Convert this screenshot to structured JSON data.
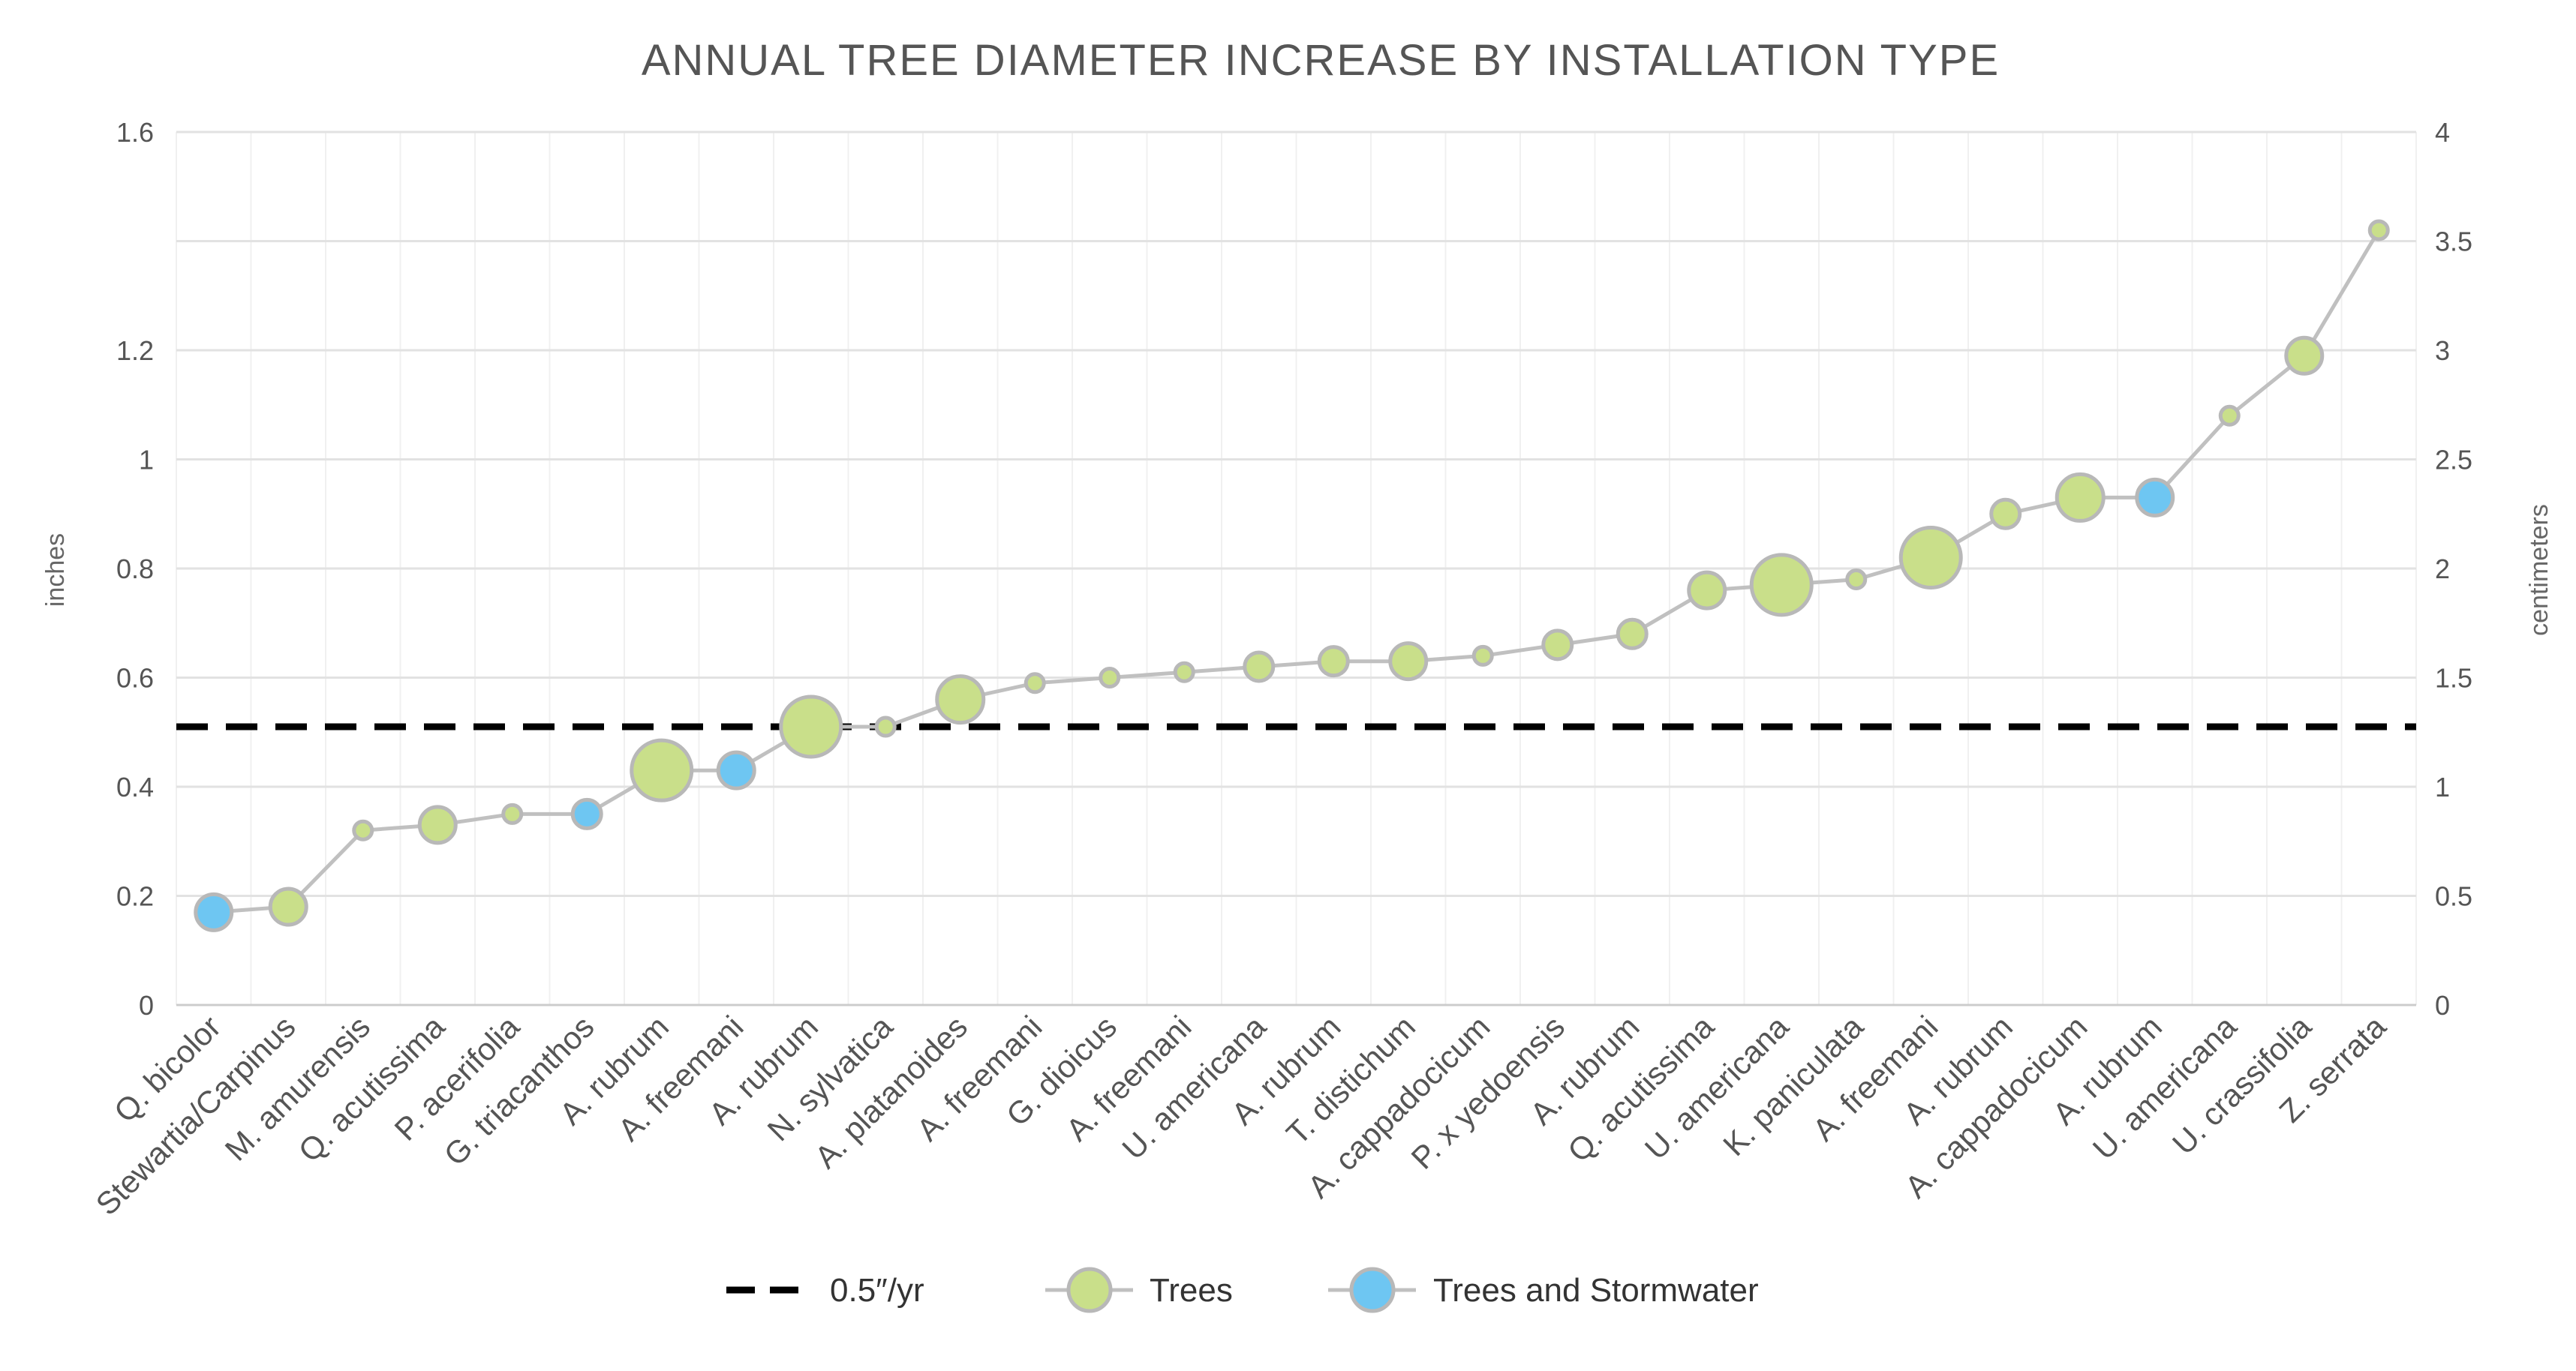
{
  "chart_data": {
    "type": "line",
    "title": "ANNUAL TREE DIAMETER INCREASE BY INSTALLATION TYPE",
    "ylabel": "inches",
    "y2label": "centimeters",
    "ylim": [
      0,
      1.6
    ],
    "y2lim": [
      0,
      4
    ],
    "yticks": [
      0,
      0.2,
      0.4,
      0.6,
      0.8,
      1,
      1.2,
      1.6
    ],
    "y2ticks": [
      0,
      0.5,
      1,
      1.5,
      2,
      2.5,
      3,
      3.5,
      4
    ],
    "grid": true,
    "legend_position": "bottom",
    "categories": [
      "Q. bicolor",
      "Stewartia/Carpinus",
      "M. amurensis",
      "Q. acutissima",
      "P. acerifolia",
      "G. triacanthos",
      "A. rubrum",
      "A. freemani",
      "A. rubrum",
      "N. sylvatica",
      "A. platanoides",
      "A. freemani",
      "G. dioicus",
      "A. freemani",
      "U. americana",
      "A. rubrum",
      "T. distichum",
      "A. cappadocicum",
      "P. x yedoensis",
      "A. rubrum",
      "Q. acutissima",
      "U. americana",
      "K. paniculata",
      "A. freemani",
      "A. rubrum",
      "A. cappadocicum",
      "A. rubrum",
      "U. americana",
      "U. crassifolia",
      "Z. serrata"
    ],
    "values": [
      0.17,
      0.18,
      0.32,
      0.33,
      0.35,
      0.35,
      0.43,
      0.43,
      0.51,
      0.51,
      0.56,
      0.59,
      0.6,
      0.61,
      0.62,
      0.63,
      0.63,
      0.64,
      0.66,
      0.68,
      0.76,
      0.77,
      0.78,
      0.82,
      0.9,
      0.93,
      0.93,
      1.08,
      1.19,
      1.42
    ],
    "group": [
      "stormwater",
      "trees",
      "trees",
      "trees",
      "trees",
      "stormwater",
      "trees",
      "stormwater",
      "trees",
      "trees",
      "trees",
      "trees",
      "trees",
      "trees",
      "trees",
      "trees",
      "trees",
      "trees",
      "trees",
      "trees",
      "trees",
      "trees",
      "trees",
      "trees",
      "trees",
      "trees",
      "stormwater",
      "trees",
      "trees",
      "trees"
    ],
    "size": [
      4,
      4,
      1,
      4,
      1,
      3,
      7,
      4,
      7,
      1,
      5,
      1,
      1,
      1,
      3,
      3,
      4,
      1,
      3,
      3,
      4,
      7,
      1,
      7,
      3,
      5,
      4,
      1,
      4,
      1
    ],
    "reference_line": {
      "value": 0.51,
      "label": "0.5″/yr",
      "style": "dashed",
      "color": "#000000"
    },
    "series": [
      {
        "name": "Trees",
        "key": "trees",
        "color": "#c9df8a"
      },
      {
        "name": "Trees and Stormwater",
        "key": "stormwater",
        "color": "#6ec6f2"
      }
    ],
    "line_color": "#c0c0c0",
    "marker_stroke": "#b8b8b8"
  }
}
